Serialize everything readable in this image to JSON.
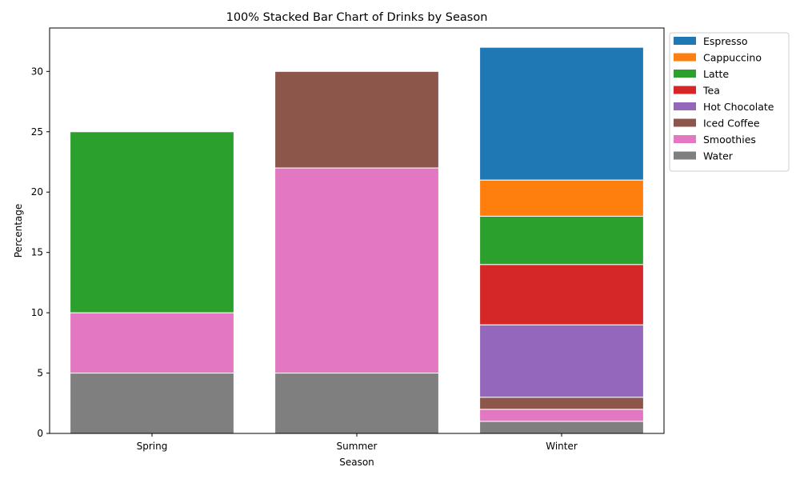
{
  "chart_data": {
    "type": "bar",
    "stacked": true,
    "title": "100% Stacked Bar Chart of Drinks by Season",
    "xlabel": "Season",
    "ylabel": "Percentage",
    "categories": [
      "Spring",
      "Summer",
      "Winter"
    ],
    "ylim": [
      0,
      33.6
    ],
    "yticks": [
      0,
      5,
      10,
      15,
      20,
      25,
      30
    ],
    "grid": false,
    "legend_position": "outside-top-right",
    "series": [
      {
        "name": "Water",
        "color": "#7f7f7f",
        "values": [
          5,
          5,
          1
        ]
      },
      {
        "name": "Smoothies",
        "color": "#e377c2",
        "values": [
          5,
          17,
          1
        ]
      },
      {
        "name": "Iced Coffee",
        "color": "#8c564b",
        "values": [
          0,
          8,
          1
        ]
      },
      {
        "name": "Hot Chocolate",
        "color": "#9467bd",
        "values": [
          0,
          0,
          6
        ]
      },
      {
        "name": "Tea",
        "color": "#d62728",
        "values": [
          0,
          0,
          5
        ]
      },
      {
        "name": "Latte",
        "color": "#2ca02c",
        "values": [
          15,
          0,
          4
        ]
      },
      {
        "name": "Cappuccino",
        "color": "#ff7f0e",
        "values": [
          0,
          0,
          3
        ]
      },
      {
        "name": "Espresso",
        "color": "#1f77b4",
        "values": [
          0,
          0,
          11
        ]
      }
    ],
    "legend_order": [
      "Espresso",
      "Cappuccino",
      "Latte",
      "Tea",
      "Hot Chocolate",
      "Iced Coffee",
      "Smoothies",
      "Water"
    ]
  }
}
